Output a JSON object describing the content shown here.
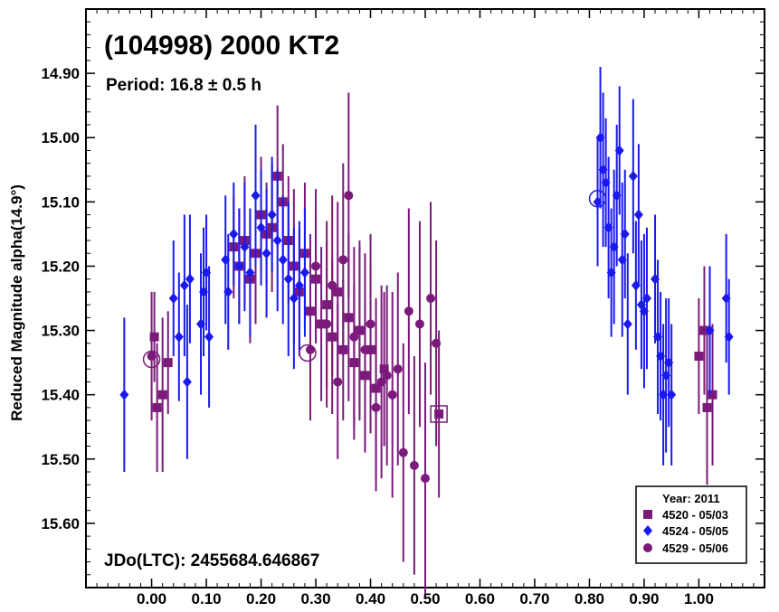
{
  "chart_data": {
    "type": "scatter",
    "title": "(104998) 2000 KT2",
    "subtitle": "Period: 16.8 ± 0.5 h",
    "footer": "JDo(LTC): 2455684.646867",
    "xlabel": "",
    "ylabel": "Reduced Magnitude alpha(14.9°)",
    "xlim": [
      -0.12,
      1.12
    ],
    "ylim": [
      15.7,
      14.8
    ],
    "y_inverted": true,
    "grid": false,
    "legend_title": "Year: 2011",
    "legend_position": "bottom-right",
    "x_ticks": [
      "0.00",
      "0.10",
      "0.20",
      "0.30",
      "0.40",
      "0.50",
      "0.60",
      "0.70",
      "0.80",
      "0.90",
      "1.00"
    ],
    "y_ticks": [
      "14.90",
      "15.00",
      "15.10",
      "15.20",
      "15.30",
      "15.40",
      "15.50",
      "15.60"
    ],
    "series": [
      {
        "name": "4520 - 05/03",
        "marker": "square",
        "color": "#7b1a7b",
        "points": [
          [
            0.005,
            15.31,
            0.07
          ],
          [
            0.01,
            15.42,
            0.1
          ],
          [
            0.02,
            15.4,
            0.12
          ],
          [
            0.03,
            15.35,
            0.08
          ],
          [
            0.15,
            15.17,
            0.08
          ],
          [
            0.16,
            15.2,
            0.09
          ],
          [
            0.17,
            15.16,
            0.1
          ],
          [
            0.18,
            15.22,
            0.1
          ],
          [
            0.19,
            15.18,
            0.11
          ],
          [
            0.2,
            15.12,
            0.09
          ],
          [
            0.21,
            15.15,
            0.08
          ],
          [
            0.22,
            15.14,
            0.1
          ],
          [
            0.23,
            15.06,
            0.11
          ],
          [
            0.24,
            15.1,
            0.09
          ],
          [
            0.25,
            15.16,
            0.1
          ],
          [
            0.26,
            15.2,
            0.12
          ],
          [
            0.27,
            15.24,
            0.1
          ],
          [
            0.28,
            15.18,
            0.11
          ],
          [
            0.29,
            15.27,
            0.12
          ],
          [
            0.3,
            15.22,
            0.1
          ],
          [
            0.31,
            15.29,
            0.12
          ],
          [
            0.32,
            15.26,
            0.13
          ],
          [
            0.33,
            15.31,
            0.12
          ],
          [
            0.34,
            15.24,
            0.14
          ],
          [
            0.35,
            15.33,
            0.11
          ],
          [
            0.36,
            15.28,
            0.13
          ],
          [
            0.37,
            15.35,
            0.12
          ],
          [
            0.38,
            15.3,
            0.14
          ],
          [
            0.39,
            15.37,
            0.12
          ],
          [
            0.4,
            15.33,
            0.13
          ],
          [
            0.41,
            15.39,
            0.14
          ],
          [
            0.425,
            15.36,
            0.12
          ],
          [
            0.525,
            15.43,
            0.13
          ],
          [
            1.0,
            15.34,
            0.09
          ],
          [
            1.01,
            15.3,
            0.1
          ],
          [
            1.015,
            15.42,
            0.12
          ],
          [
            1.025,
            15.4,
            0.11
          ]
        ]
      },
      {
        "name": "4524 - 05/05",
        "marker": "diamond",
        "color": "#1a1aee",
        "points": [
          [
            -0.05,
            15.4,
            0.12
          ],
          [
            0.04,
            15.25,
            0.09
          ],
          [
            0.05,
            15.31,
            0.1
          ],
          [
            0.06,
            15.23,
            0.11
          ],
          [
            0.065,
            15.38,
            0.12
          ],
          [
            0.07,
            15.22,
            0.1
          ],
          [
            0.09,
            15.29,
            0.11
          ],
          [
            0.095,
            15.24,
            0.1
          ],
          [
            0.1,
            15.21,
            0.09
          ],
          [
            0.105,
            15.31,
            0.11
          ],
          [
            0.135,
            15.19,
            0.1
          ],
          [
            0.14,
            15.24,
            0.09
          ],
          [
            0.15,
            15.15,
            0.08
          ],
          [
            0.16,
            15.2,
            0.09
          ],
          [
            0.17,
            15.17,
            0.1
          ],
          [
            0.18,
            15.21,
            0.1
          ],
          [
            0.19,
            15.09,
            0.11
          ],
          [
            0.2,
            15.14,
            0.09
          ],
          [
            0.21,
            15.18,
            0.1
          ],
          [
            0.22,
            15.12,
            0.09
          ],
          [
            0.23,
            15.16,
            0.11
          ],
          [
            0.24,
            15.19,
            0.1
          ],
          [
            0.25,
            15.22,
            0.12
          ],
          [
            0.26,
            15.25,
            0.11
          ],
          [
            0.27,
            15.23,
            0.1
          ],
          [
            0.28,
            15.21,
            0.1
          ],
          [
            0.815,
            15.1,
            0.1
          ],
          [
            0.82,
            15.0,
            0.11
          ],
          [
            0.825,
            15.05,
            0.12
          ],
          [
            0.83,
            15.07,
            0.1
          ],
          [
            0.835,
            15.14,
            0.11
          ],
          [
            0.84,
            15.21,
            0.1
          ],
          [
            0.845,
            15.17,
            0.12
          ],
          [
            0.85,
            15.09,
            0.11
          ],
          [
            0.855,
            15.02,
            0.1
          ],
          [
            0.86,
            15.19,
            0.12
          ],
          [
            0.865,
            15.15,
            0.1
          ],
          [
            0.87,
            15.29,
            0.11
          ],
          [
            0.88,
            15.06,
            0.12
          ],
          [
            0.885,
            15.23,
            0.1
          ],
          [
            0.89,
            15.12,
            0.11
          ],
          [
            0.895,
            15.26,
            0.1
          ],
          [
            0.9,
            15.27,
            0.12
          ],
          [
            0.905,
            15.25,
            0.11
          ],
          [
            0.92,
            15.22,
            0.1
          ],
          [
            0.925,
            15.31,
            0.12
          ],
          [
            0.93,
            15.34,
            0.1
          ],
          [
            0.935,
            15.4,
            0.11
          ],
          [
            0.94,
            15.37,
            0.12
          ],
          [
            0.945,
            15.35,
            0.1
          ],
          [
            0.95,
            15.4,
            0.11
          ],
          [
            1.05,
            15.25,
            0.1
          ],
          [
            1.055,
            15.31,
            0.09
          ],
          [
            1.02,
            15.3,
            0.1
          ]
        ]
      },
      {
        "name": "4529 - 05/06",
        "marker": "circle",
        "color": "#7b1a7b",
        "points": [
          [
            0.0,
            15.34,
            0.1
          ],
          [
            0.29,
            15.33,
            0.11
          ],
          [
            0.3,
            15.2,
            0.12
          ],
          [
            0.32,
            15.29,
            0.13
          ],
          [
            0.33,
            15.23,
            0.14
          ],
          [
            0.34,
            15.38,
            0.12
          ],
          [
            0.35,
            15.19,
            0.15
          ],
          [
            0.36,
            15.09,
            0.16
          ],
          [
            0.37,
            15.31,
            0.14
          ],
          [
            0.38,
            15.3,
            0.13
          ],
          [
            0.39,
            15.33,
            0.15
          ],
          [
            0.4,
            15.29,
            0.14
          ],
          [
            0.41,
            15.42,
            0.13
          ],
          [
            0.42,
            15.38,
            0.15
          ],
          [
            0.43,
            15.37,
            0.14
          ],
          [
            0.44,
            15.4,
            0.16
          ],
          [
            0.45,
            15.36,
            0.15
          ],
          [
            0.46,
            15.49,
            0.17
          ],
          [
            0.47,
            15.27,
            0.16
          ],
          [
            0.48,
            15.51,
            0.17
          ],
          [
            0.49,
            15.29,
            0.16
          ],
          [
            0.5,
            15.53,
            0.18
          ],
          [
            0.51,
            15.25,
            0.15
          ],
          [
            0.52,
            15.32,
            0.16
          ]
        ]
      }
    ],
    "open_markers": [
      {
        "shape": "circle",
        "x": 0.0,
        "y": 15.345,
        "color": "#7b1a7b"
      },
      {
        "shape": "circle",
        "x": 0.285,
        "y": 15.335,
        "color": "#7b1a7b"
      },
      {
        "shape": "square",
        "x": 0.525,
        "y": 15.43,
        "color": "#7b1a7b"
      },
      {
        "shape": "circle",
        "x": 0.815,
        "y": 15.095,
        "color": "#1a1aee"
      }
    ]
  }
}
